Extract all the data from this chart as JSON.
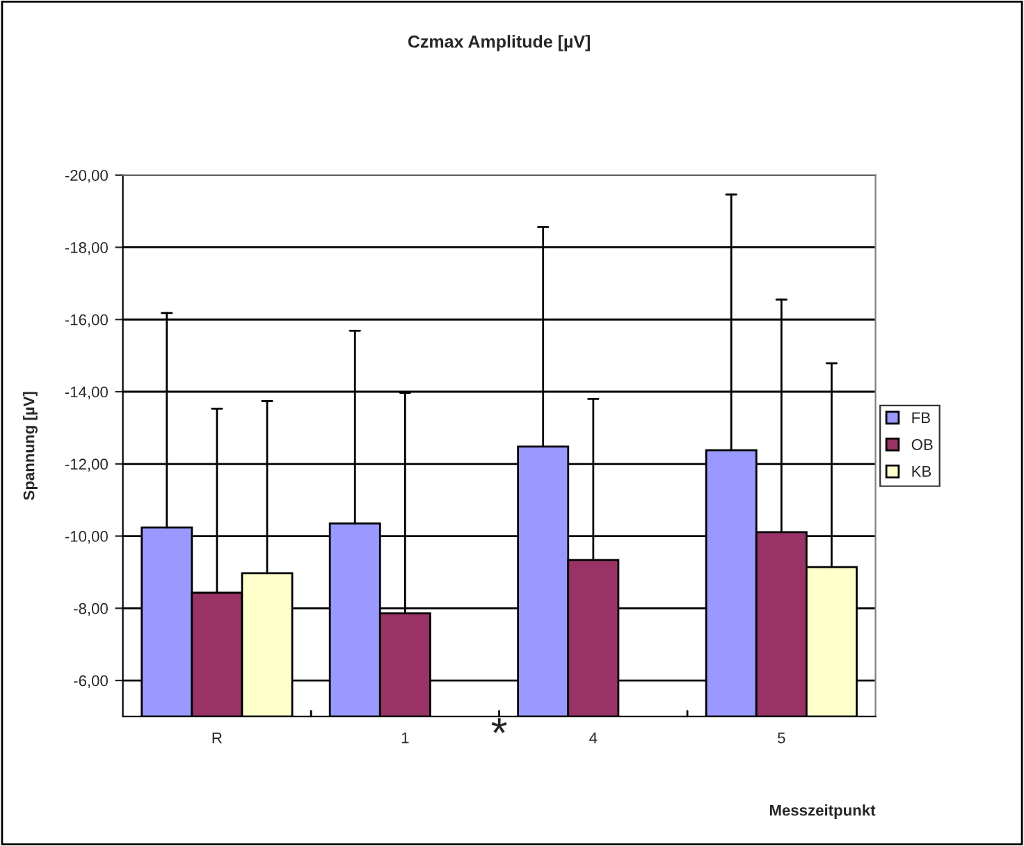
{
  "chart_data": {
    "type": "bar",
    "title": "Czmax Amplitude [µV]",
    "xlabel": "Messzeitpunkt",
    "ylabel": "Spannung [µV]",
    "categories": [
      "R",
      "1",
      "4",
      "5"
    ],
    "series": [
      {
        "name": "FB",
        "color": "#9999ff",
        "values": [
          -10.24,
          -10.35,
          -12.48,
          -12.38
        ],
        "errors": [
          [
            -10.24,
            -16.18
          ],
          [
            -10.35,
            -15.69
          ],
          [
            -12.48,
            -18.56
          ],
          [
            -12.38,
            -19.46
          ]
        ]
      },
      {
        "name": "OB",
        "color": "#993366",
        "values": [
          -8.43,
          -7.86,
          -9.34,
          -10.11
        ],
        "errors": [
          [
            -8.43,
            -13.53
          ],
          [
            -7.86,
            -13.97
          ],
          [
            -9.34,
            -13.8
          ],
          [
            -10.11,
            -16.55
          ]
        ]
      },
      {
        "name": "KB",
        "color": "#ffffcc",
        "values": [
          -8.97,
          null,
          null,
          -9.14
        ],
        "errors": [
          [
            -8.97,
            -13.74
          ],
          null,
          null,
          [
            -9.14,
            -14.79
          ]
        ]
      }
    ],
    "ylim": [
      -5,
      -20
    ],
    "yticks": [
      {
        "value": -6,
        "label": "-6,00"
      },
      {
        "value": -8,
        "label": "-8,00"
      },
      {
        "value": -10,
        "label": "-10,00"
      },
      {
        "value": -12,
        "label": "-12,00"
      },
      {
        "value": -14,
        "label": "-14,00"
      },
      {
        "value": -16,
        "label": "-16,00"
      },
      {
        "value": -18,
        "label": "-18,00"
      },
      {
        "value": -20,
        "label": "-20,00"
      }
    ],
    "grid": "y",
    "legend": "right",
    "annotations": [
      "*"
    ]
  }
}
